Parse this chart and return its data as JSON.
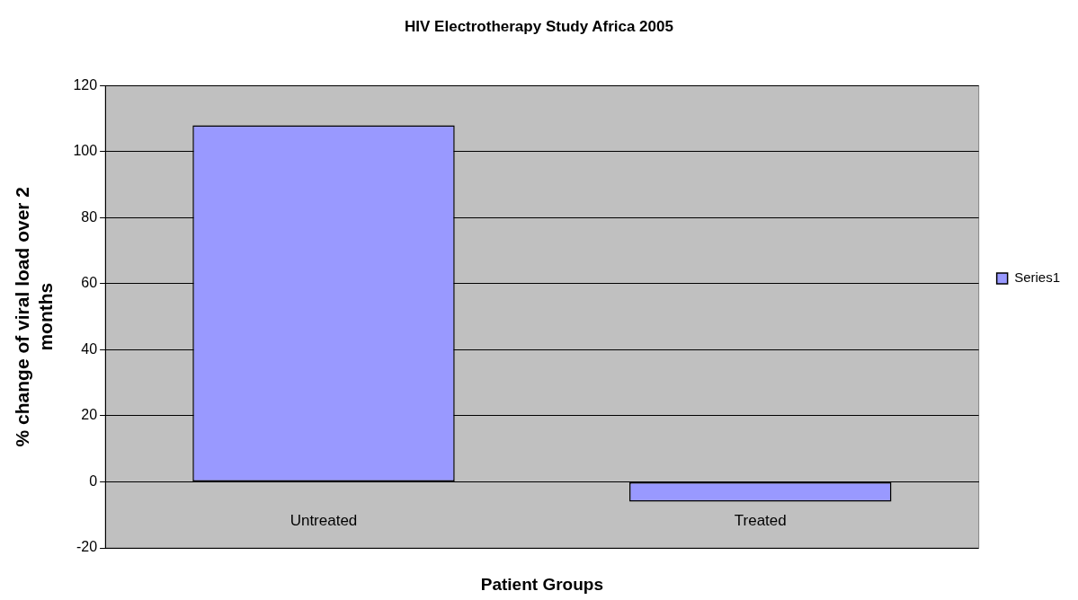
{
  "chart_data": {
    "type": "bar",
    "title": "HIV Electrotherapy Study Africa 2005",
    "xlabel": "Patient Groups",
    "ylabel": "% change of viral load over 2 months",
    "categories": [
      "Untreated",
      "Treated"
    ],
    "series": [
      {
        "name": "Series1",
        "color": "#9999ff",
        "values": [
          108,
          -6
        ]
      }
    ],
    "ylim": [
      -20,
      120
    ],
    "yticks": [
      -20,
      0,
      20,
      40,
      60,
      80,
      100,
      120
    ],
    "grid": "y",
    "legend": "right"
  }
}
